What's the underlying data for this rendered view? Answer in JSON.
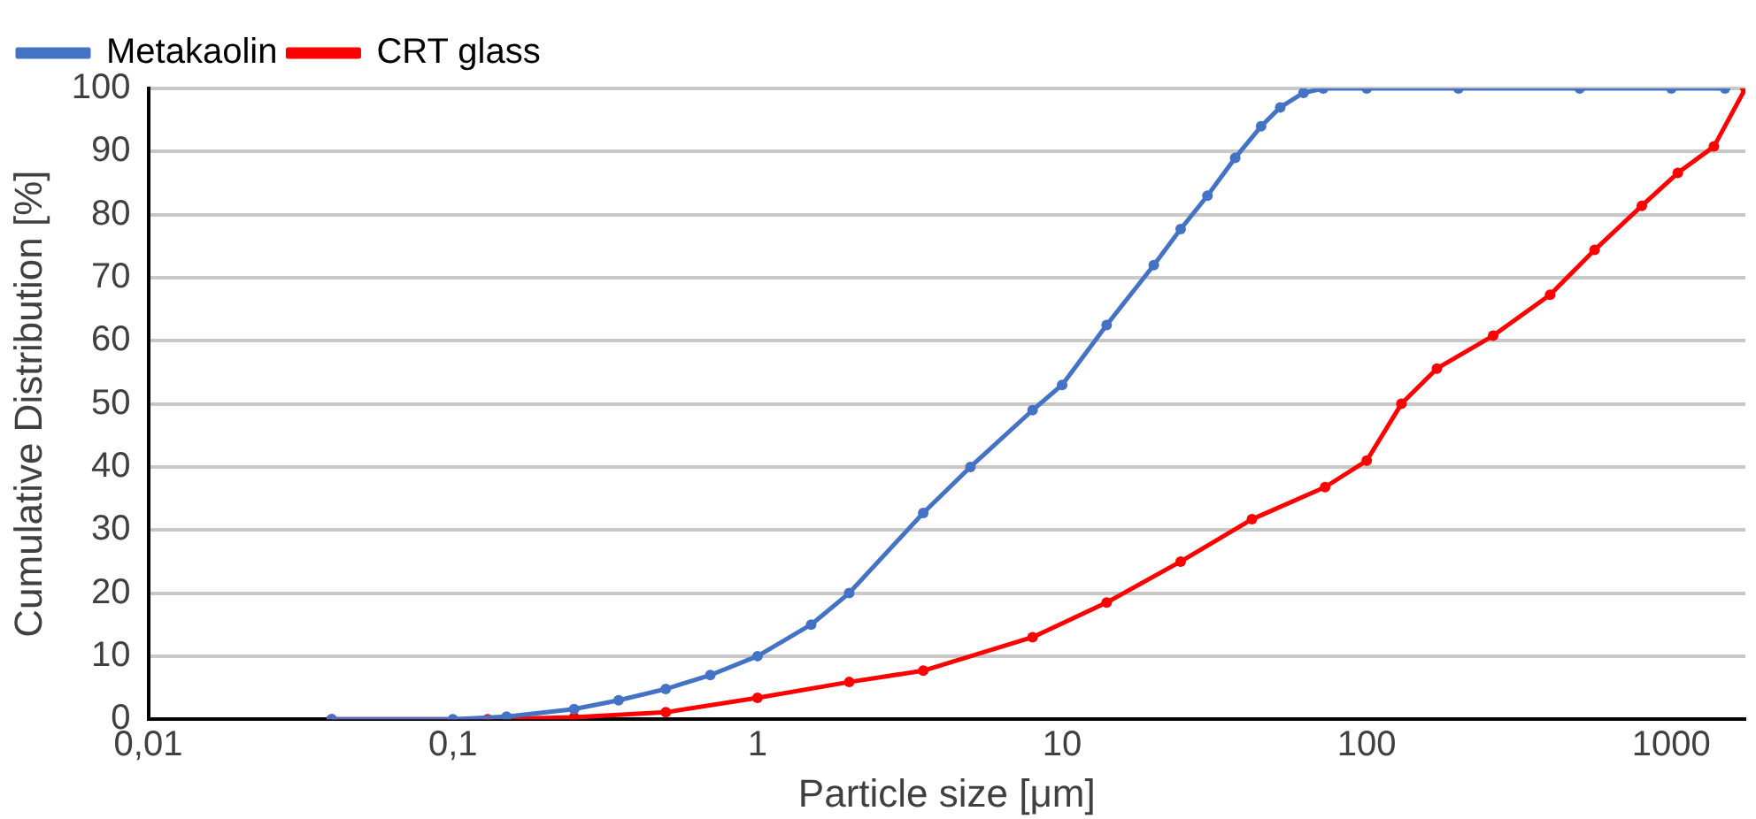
{
  "chart_data": {
    "type": "line",
    "xlabel": "Particle size [μm]",
    "ylabel": "Cumulative Distribution [%]",
    "series": [
      {
        "name": "Metakaolin",
        "color": "#4472c4",
        "x": [
          0.04,
          0.1,
          0.15,
          0.25,
          0.35,
          0.5,
          0.7,
          1,
          1.5,
          2,
          3.5,
          5,
          8,
          10,
          14,
          20,
          24.5,
          30,
          37,
          45,
          52,
          62,
          72,
          100,
          200,
          500,
          1000,
          1500
        ],
        "values": [
          0,
          0,
          0.4,
          1.6,
          3,
          4.8,
          7,
          10,
          15,
          20,
          32.7,
          40,
          49,
          53,
          62.5,
          72,
          77.7,
          83,
          89,
          94,
          97,
          99.3,
          100,
          100,
          100,
          100,
          100,
          100
        ]
      },
      {
        "name": "CRT glass",
        "color": "#ff0000",
        "x": [
          0.04,
          0.13,
          0.25,
          0.5,
          1,
          2,
          3.5,
          8,
          14,
          24.5,
          42,
          73,
          100,
          130,
          170,
          260,
          400,
          560,
          800,
          1050,
          1380,
          1750
        ],
        "values": [
          0,
          0,
          0.3,
          1.1,
          3.4,
          5.9,
          7.7,
          13,
          18.5,
          25,
          31.7,
          36.8,
          41,
          50,
          55.6,
          60.8,
          67.3,
          74.4,
          81.4,
          86.6,
          90.8,
          100
        ]
      }
    ],
    "log": "x",
    "xlim": [
      0.01,
      1750
    ],
    "xticks": [
      {
        "value": 0.01,
        "label": "0,01"
      },
      {
        "value": 0.1,
        "label": "0,1"
      },
      1,
      10,
      100,
      1000
    ],
    "ylim": [
      0,
      100
    ],
    "yticks": [
      0,
      10,
      20,
      30,
      40,
      50,
      60,
      70,
      80,
      90,
      100
    ],
    "grid": "y",
    "legend": "top left",
    "marker": "circle",
    "line_style": "solid"
  }
}
